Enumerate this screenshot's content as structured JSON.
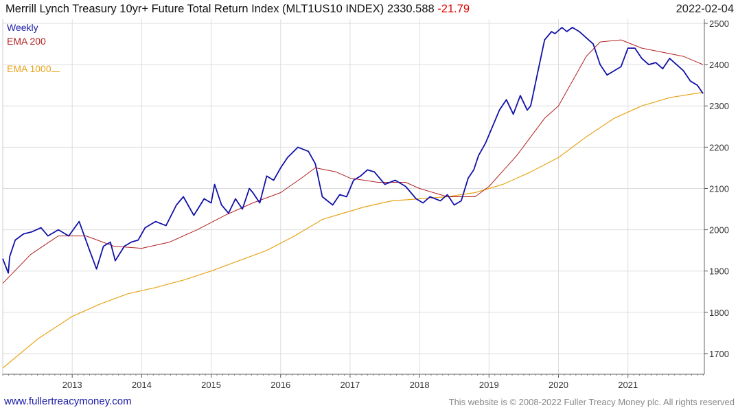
{
  "header": {
    "title": "Merrill Lynch Treasury 10yr+ Future Total Return Index (MLT1US10 INDEX) 2330.588",
    "change": "-21.79",
    "date": "2022-02-04"
  },
  "legend": {
    "weekly": "Weekly",
    "ema200": "EMA 200",
    "ema1000": "EMA 1000"
  },
  "footer": {
    "site": "www.fullertreacymoney.com",
    "copyright": "This website is © 2008-2022 Fuller Treacy Money plc. All rights reserved"
  },
  "colors": {
    "weekly": "#1010a8",
    "ema200": "#b02020",
    "ema1000": "#e8a317",
    "grid": "#dddddd"
  },
  "chart_data": {
    "type": "line",
    "title": "Merrill Lynch Treasury 10yr+ Future Total Return Index (MLT1US10 INDEX)",
    "xlabel": "",
    "ylabel": "",
    "xlim": [
      2012.0,
      2022.1
    ],
    "ylim": [
      1650,
      2510
    ],
    "x_ticks": [
      2013,
      2014,
      2015,
      2016,
      2017,
      2018,
      2019,
      2020,
      2021
    ],
    "y_ticks": [
      1700,
      1800,
      1900,
      2000,
      2100,
      2200,
      2300,
      2400,
      2500
    ],
    "series": [
      {
        "name": "Weekly",
        "x": [
          2012.0,
          2012.08,
          2012.1,
          2012.18,
          2012.3,
          2012.42,
          2012.55,
          2012.65,
          2012.8,
          2012.95,
          2013.1,
          2013.25,
          2013.35,
          2013.45,
          2013.55,
          2013.62,
          2013.75,
          2013.85,
          2013.95,
          2014.05,
          2014.2,
          2014.35,
          2014.5,
          2014.6,
          2014.75,
          2014.9,
          2015.0,
          2015.05,
          2015.15,
          2015.25,
          2015.35,
          2015.45,
          2015.55,
          2015.6,
          2015.7,
          2015.8,
          2015.9,
          2016.0,
          2016.1,
          2016.25,
          2016.4,
          2016.5,
          2016.6,
          2016.75,
          2016.85,
          2016.95,
          2017.05,
          2017.15,
          2017.25,
          2017.35,
          2017.5,
          2017.65,
          2017.8,
          2017.95,
          2018.05,
          2018.15,
          2018.3,
          2018.4,
          2018.5,
          2018.6,
          2018.7,
          2018.78,
          2018.85,
          2018.95,
          2019.05,
          2019.15,
          2019.25,
          2019.35,
          2019.45,
          2019.55,
          2019.6,
          2019.7,
          2019.8,
          2019.9,
          2019.95,
          2020.05,
          2020.12,
          2020.2,
          2020.3,
          2020.4,
          2020.5,
          2020.6,
          2020.7,
          2020.8,
          2020.9,
          2021.0,
          2021.1,
          2021.2,
          2021.3,
          2021.4,
          2021.5,
          2021.6,
          2021.7,
          2021.8,
          2021.9,
          2022.0,
          2022.08
        ],
        "values": [
          1930,
          1895,
          1935,
          1975,
          1990,
          1995,
          2005,
          1985,
          2000,
          1985,
          2020,
          1950,
          1905,
          1960,
          1970,
          1925,
          1960,
          1970,
          1975,
          2005,
          2020,
          2010,
          2060,
          2080,
          2035,
          2075,
          2065,
          2110,
          2060,
          2040,
          2075,
          2050,
          2100,
          2090,
          2065,
          2130,
          2120,
          2150,
          2175,
          2200,
          2190,
          2160,
          2080,
          2060,
          2085,
          2080,
          2120,
          2130,
          2145,
          2140,
          2110,
          2120,
          2105,
          2075,
          2065,
          2080,
          2070,
          2085,
          2060,
          2070,
          2125,
          2145,
          2180,
          2210,
          2250,
          2290,
          2315,
          2280,
          2325,
          2290,
          2300,
          2380,
          2460,
          2480,
          2475,
          2490,
          2480,
          2490,
          2480,
          2465,
          2450,
          2400,
          2375,
          2385,
          2395,
          2440,
          2440,
          2415,
          2400,
          2405,
          2390,
          2415,
          2400,
          2385,
          2360,
          2350,
          2330
        ]
      },
      {
        "name": "EMA 200",
        "x": [
          2012.0,
          2012.4,
          2012.8,
          2013.2,
          2013.6,
          2014.0,
          2014.4,
          2014.8,
          2015.2,
          2015.6,
          2016.0,
          2016.3,
          2016.5,
          2016.8,
          2017.0,
          2017.4,
          2017.8,
          2018.0,
          2018.4,
          2018.8,
          2019.0,
          2019.4,
          2019.8,
          2020.0,
          2020.2,
          2020.4,
          2020.6,
          2020.9,
          2021.2,
          2021.5,
          2021.8,
          2022.08
        ],
        "values": [
          1870,
          1940,
          1985,
          1985,
          1960,
          1955,
          1970,
          2000,
          2035,
          2065,
          2090,
          2125,
          2150,
          2140,
          2125,
          2115,
          2115,
          2100,
          2080,
          2080,
          2105,
          2180,
          2270,
          2300,
          2360,
          2420,
          2455,
          2460,
          2440,
          2430,
          2420,
          2400
        ]
      },
      {
        "name": "EMA 1000",
        "x": [
          2012.0,
          2012.5,
          2013.0,
          2013.4,
          2013.8,
          2014.2,
          2014.6,
          2015.0,
          2015.4,
          2015.8,
          2016.2,
          2016.6,
          2016.9,
          2017.2,
          2017.6,
          2018.0,
          2018.4,
          2018.8,
          2019.2,
          2019.6,
          2020.0,
          2020.4,
          2020.8,
          2021.2,
          2021.6,
          2022.08
        ],
        "values": [
          1665,
          1735,
          1790,
          1820,
          1845,
          1860,
          1878,
          1900,
          1925,
          1950,
          1985,
          2025,
          2040,
          2055,
          2070,
          2075,
          2080,
          2090,
          2110,
          2140,
          2175,
          2225,
          2270,
          2300,
          2320,
          2333
        ]
      }
    ]
  }
}
